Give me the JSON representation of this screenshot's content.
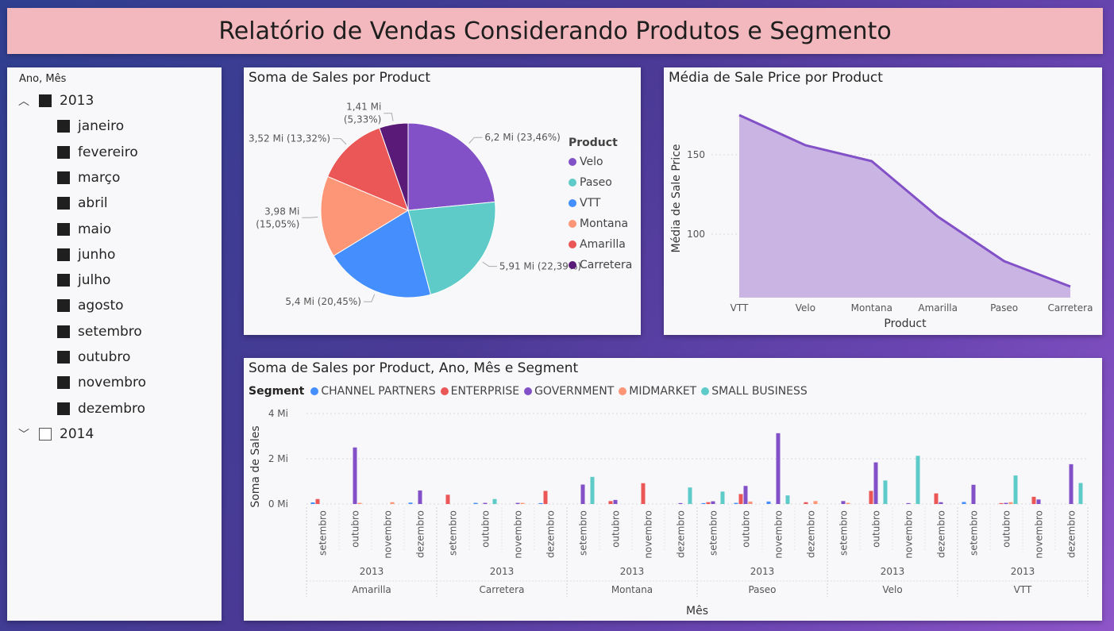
{
  "report_title": "Relatório de Vendas Considerando Produtos e Segmento",
  "slicer": {
    "header": "Ano, Mês",
    "years": [
      {
        "label": "2013",
        "checked": true,
        "expanded": true,
        "months": [
          "janeiro",
          "fevereiro",
          "março",
          "abril",
          "maio",
          "junho",
          "julho",
          "agosto",
          "setembro",
          "outubro",
          "novembro",
          "dezembro"
        ]
      },
      {
        "label": "2014",
        "checked": false,
        "expanded": false,
        "months": []
      }
    ],
    "icons": {
      "expanded": "chevron-up-icon",
      "collapsed": "chevron-down-icon"
    }
  },
  "pie": {
    "title": "Soma de Sales por Product",
    "legend_title": "Product",
    "chart_data": {
      "type": "pie",
      "title": "Soma de Sales por Product",
      "unit": "Mi",
      "slices": [
        {
          "name": "Velo",
          "value": 6.2,
          "percent": 23.46,
          "color": "#8251c7",
          "label": "6,2 Mi (23,46%)"
        },
        {
          "name": "Paseo",
          "value": 5.91,
          "percent": 22.39,
          "color": "#5ecbc8",
          "label": "5,91 Mi (22,39%)"
        },
        {
          "name": "VTT",
          "value": 5.4,
          "percent": 20.45,
          "color": "#448efd",
          "label": "5,4 Mi (20,45%)"
        },
        {
          "name": "Montana",
          "value": 3.98,
          "percent": 15.05,
          "color": "#fd9577",
          "label": "3,98 Mi (15,05%)"
        },
        {
          "name": "Amarilla",
          "value": 3.52,
          "percent": 13.32,
          "color": "#eb5757",
          "label": "3,52 Mi (13,32%)"
        },
        {
          "name": "Carretera",
          "value": 1.41,
          "percent": 5.33,
          "color": "#5a1a77",
          "label": "1,41 Mi (5,33%)"
        }
      ]
    }
  },
  "area": {
    "title": "Média de Sale Price por Product",
    "chart_data": {
      "type": "area",
      "title": "Média de Sale Price por Product",
      "xlabel": "Product",
      "ylabel": "Média de Sale Price",
      "categories": [
        "VTT",
        "Velo",
        "Montana",
        "Amarilla",
        "Paseo",
        "Carretera"
      ],
      "values": [
        175,
        156,
        146,
        111,
        83,
        67
      ],
      "yticks": [
        "150",
        "100"
      ],
      "ytick_values": [
        150,
        100
      ],
      "ylim": [
        60,
        185
      ],
      "line_color": "#8251c7",
      "fill_color": "#c9b4e4"
    }
  },
  "bars": {
    "title": "Soma de Sales por Product, Ano, Mês e Segment",
    "legend_title": "Segment",
    "chart_data": {
      "type": "bar",
      "title": "Soma de Sales por Product, Ano, Mês e Segment",
      "xlabel": "Mês",
      "ylabel": "Soma de Sales",
      "unit": "Mi",
      "yticks": [
        "4 Mi",
        "2 Mi",
        "0 Mi"
      ],
      "ytick_values": [
        4,
        2,
        0
      ],
      "ylim": [
        0,
        4
      ],
      "series": [
        {
          "name": "CHANNEL PARTNERS",
          "color": "#448efd"
        },
        {
          "name": "ENTERPRISE",
          "color": "#eb5757"
        },
        {
          "name": "GOVERNMENT",
          "color": "#8251c7"
        },
        {
          "name": "MIDMARKET",
          "color": "#fd9577"
        },
        {
          "name": "SMALL BUSINESS",
          "color": "#5ecbc8"
        }
      ],
      "products": [
        {
          "name": "Amarilla",
          "year": "2013",
          "months": [
            {
              "month": "setembro",
              "values": [
                0.07,
                0.22,
                0,
                0,
                0
              ]
            },
            {
              "month": "outubro",
              "values": [
                0,
                0,
                2.5,
                0.05,
                0
              ]
            },
            {
              "month": "novembro",
              "values": [
                0,
                0,
                0,
                0.08,
                0
              ]
            },
            {
              "month": "dezembro",
              "values": [
                0.06,
                0,
                0.6,
                0,
                0
              ]
            }
          ]
        },
        {
          "name": "Carretera",
          "year": "2013",
          "months": [
            {
              "month": "setembro",
              "values": [
                0,
                0.41,
                0,
                0,
                0
              ]
            },
            {
              "month": "outubro",
              "values": [
                0.05,
                0,
                0.05,
                0,
                0.22
              ]
            },
            {
              "month": "novembro",
              "values": [
                0,
                0,
                0.05,
                0.05,
                0
              ]
            },
            {
              "month": "dezembro",
              "values": [
                0.04,
                0.58,
                0,
                0,
                0
              ]
            }
          ]
        },
        {
          "name": "Montana",
          "year": "2013",
          "months": [
            {
              "month": "setembro",
              "values": [
                0,
                0,
                0.86,
                0,
                1.2
              ]
            },
            {
              "month": "outubro",
              "values": [
                0,
                0.13,
                0.18,
                0,
                0
              ]
            },
            {
              "month": "novembro",
              "values": [
                0,
                0.92,
                0,
                0,
                0
              ]
            },
            {
              "month": "dezembro",
              "values": [
                0,
                0,
                0.04,
                0,
                0.73
              ]
            }
          ]
        },
        {
          "name": "Paseo",
          "year": "2013",
          "months": [
            {
              "month": "setembro",
              "values": [
                0.04,
                0.08,
                0.12,
                0,
                0.55
              ]
            },
            {
              "month": "outubro",
              "values": [
                0.05,
                0.44,
                0.8,
                0.11,
                0
              ]
            },
            {
              "month": "novembro",
              "values": [
                0.11,
                0,
                3.13,
                0,
                0.38
              ]
            },
            {
              "month": "dezembro",
              "values": [
                0,
                0.08,
                0,
                0.13,
                0
              ]
            }
          ]
        },
        {
          "name": "Velo",
          "year": "2013",
          "months": [
            {
              "month": "setembro",
              "values": [
                0,
                0,
                0.13,
                0.05,
                0
              ]
            },
            {
              "month": "outubro",
              "values": [
                0,
                0.58,
                1.84,
                0,
                1.04
              ]
            },
            {
              "month": "novembro",
              "values": [
                0,
                0,
                0.04,
                0,
                2.13
              ]
            },
            {
              "month": "dezembro",
              "values": [
                0,
                0.47,
                0.08,
                0,
                0
              ]
            }
          ]
        },
        {
          "name": "VTT",
          "year": "2013",
          "months": [
            {
              "month": "setembro",
              "values": [
                0.09,
                0,
                0.85,
                0,
                0
              ]
            },
            {
              "month": "outubro",
              "values": [
                0,
                0.04,
                0.05,
                0.08,
                1.26
              ]
            },
            {
              "month": "novembro",
              "values": [
                0,
                0.32,
                0.2,
                0,
                0
              ]
            },
            {
              "month": "dezembro",
              "values": [
                0,
                0,
                1.76,
                0,
                0.93
              ]
            }
          ]
        }
      ]
    }
  }
}
